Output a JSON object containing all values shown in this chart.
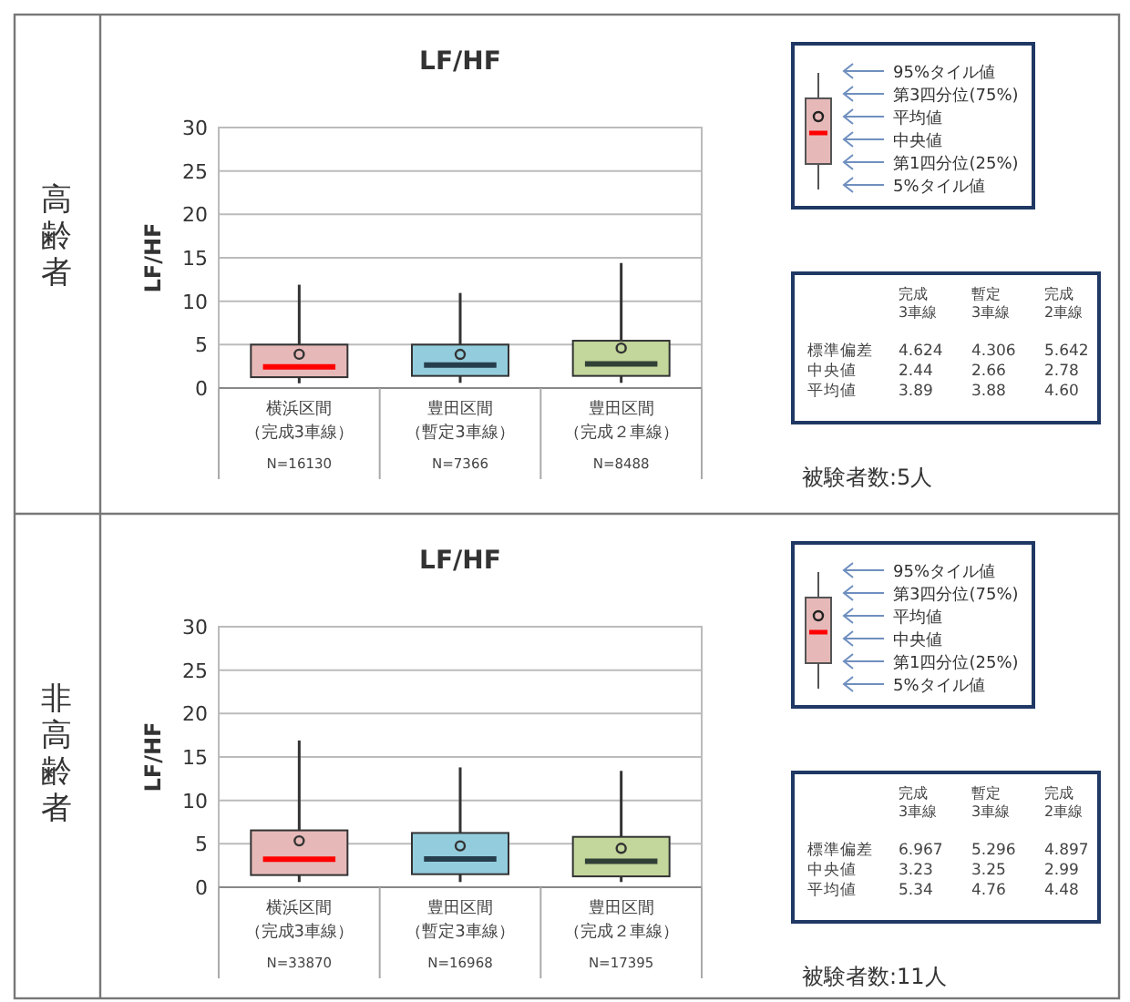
{
  "chart_data": [
    {
      "type": "box",
      "title": "LF/HF",
      "subtitle": "高齢者",
      "ylabel": "LF/HF",
      "categories": [
        "横浜区間（完成3車線）",
        "豊田区間（暫定3車線）",
        "豊田区間（完成２車線）"
      ],
      "boxes": [
        {
          "low": 0.55,
          "q1": 1.25,
          "median": 2.44,
          "q3": 5.0,
          "high": 11.9,
          "mean": 3.89
        },
        {
          "low": 0.6,
          "q1": 1.4,
          "median": 2.66,
          "q3": 5.0,
          "high": 10.95,
          "mean": 3.88
        },
        {
          "low": 0.6,
          "q1": 1.4,
          "median": 2.78,
          "q3": 5.45,
          "high": 14.4,
          "mean": 4.6
        }
      ],
      "colors": [
        "#e6b9b8",
        "#93cddd",
        "#c3d69b"
      ],
      "ylim": [
        0,
        30
      ],
      "yticks": [
        0,
        5,
        10,
        15,
        20,
        25,
        30
      ],
      "grid": "y",
      "annotations": [
        "95%タイル値",
        "第3四分位(75%)",
        "平均値",
        "中央値",
        "第1四分位(25%)",
        "5%タイル値",
        "完成\n3車線",
        "暫定\n3車線",
        "完成\n2車線",
        "標準偏差",
        "4.624",
        "4.306",
        "5.642",
        "中央値",
        "2.44",
        "2.66",
        "2.78",
        "平均値",
        "3.89",
        "3.88",
        "4.60",
        "被験者数:5人",
        "N=16130",
        "N=7366",
        "N=8488"
      ]
    },
    {
      "type": "box",
      "title": "LF/HF",
      "subtitle": "非高齢者",
      "ylabel": "LF/HF",
      "categories": [
        "横浜区間（完成3車線）",
        "豊田区間（暫定3車線）",
        "豊田区間（完成２車線）"
      ],
      "boxes": [
        {
          "low": 0.6,
          "q1": 1.4,
          "median": 3.23,
          "q3": 6.55,
          "high": 16.9,
          "mean": 5.34
        },
        {
          "low": 0.6,
          "q1": 1.5,
          "median": 3.25,
          "q3": 6.25,
          "high": 13.8,
          "mean": 4.76
        },
        {
          "low": 0.6,
          "q1": 1.25,
          "median": 2.99,
          "q3": 5.8,
          "high": 13.4,
          "mean": 4.48
        }
      ],
      "colors": [
        "#e6b9b8",
        "#93cddd",
        "#c3d69b"
      ],
      "ylim": [
        0,
        30
      ],
      "yticks": [
        0,
        5,
        10,
        15,
        20,
        25,
        30
      ],
      "grid": "y",
      "annotations": [
        "95%タイル値",
        "第3四分位(75%)",
        "平均値",
        "中央値",
        "第1四分位(25%)",
        "5%タイル値",
        "完成\n3車線",
        "暫定\n3車線",
        "完成\n2車線",
        "標準偏差",
        "6.967",
        "5.296",
        "4.897",
        "中央値",
        "3.23",
        "3.25",
        "2.99",
        "平均値",
        "5.34",
        "4.76",
        "4.48",
        "被験者数:11人",
        "N=33870",
        "N=16968",
        "N=17395"
      ]
    }
  ]
}
